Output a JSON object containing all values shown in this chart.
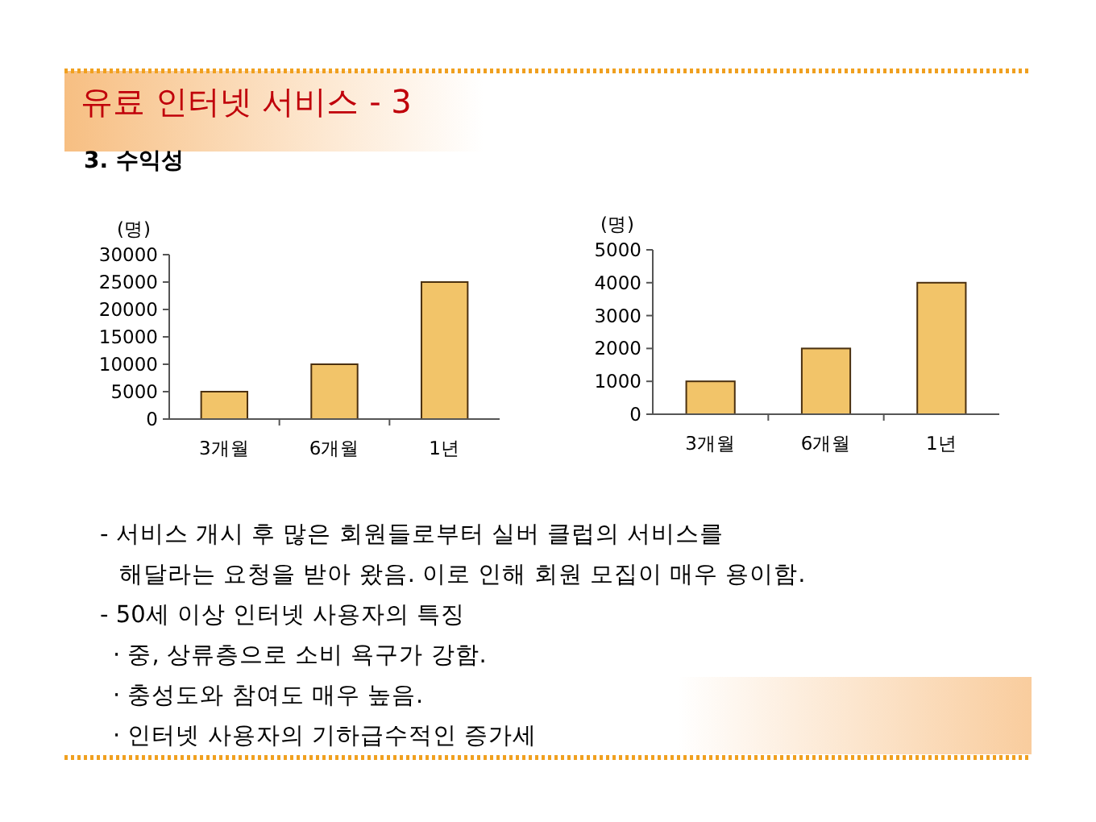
{
  "chart_data": [
    {
      "type": "other",
      "title": "유료 인터넷 서비스 - 3",
      "subtitle": "3. 수익성"
    },
    {
      "type": "bar",
      "ylabel": "(명)",
      "categories": [
        "3개월",
        "6개월",
        "1년"
      ],
      "values": [
        5000,
        10000,
        25000
      ],
      "color": "#f2c469",
      "ylim": [
        0,
        30000
      ],
      "yticks": [
        0,
        5000,
        10000,
        15000,
        20000,
        25000,
        30000
      ],
      "grid": false
    },
    {
      "type": "bar",
      "ylabel": "(명)",
      "categories": [
        "3개월",
        "6개월",
        "1년"
      ],
      "values": [
        1000,
        2000,
        4000
      ],
      "color": "#f2c469",
      "ylim": [
        0,
        5000
      ],
      "yticks": [
        0,
        1000,
        2000,
        3000,
        4000,
        5000
      ],
      "grid": false
    },
    {
      "type": "other",
      "annotations": [
        "- 서비스 개시 후 많은 회원들로부터 실버 클럽의 서비스를",
        "해달라는 요청을 받아 왔음.  이로 인해 회원 모집이 매우 용이함.",
        "- 50세 이상 인터넷 사용자의 특징",
        "· 중, 상류층으로 소비 욕구가 강함.",
        "· 충성도와 참여도 매우 높음.",
        "· 인터넷 사용자의 기하급수적인 증가세"
      ]
    }
  ]
}
